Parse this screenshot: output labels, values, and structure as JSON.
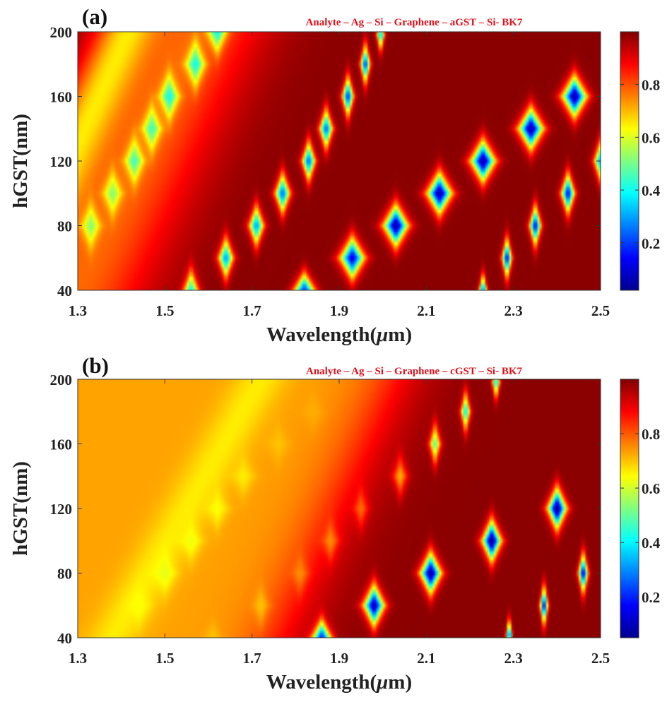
{
  "colormap": [
    "#00008f",
    "#0000ff",
    "#0080ff",
    "#00ffff",
    "#80ff80",
    "#ffff00",
    "#ff8000",
    "#ff0000",
    "#800000"
  ],
  "chart_data": [
    {
      "type": "heatmap",
      "panel_label": "(a)",
      "annotation": "Analyte – Ag – Si – Graphene – aGST – Si- BK7",
      "xlabel": "Wavelength(",
      "xlabel_mu": "μ",
      "xlabel_end": "m)",
      "ylabel": "hGST(nm)",
      "xlim": [
        1.3,
        2.5
      ],
      "ylim": [
        40,
        200
      ],
      "xticks": [
        1.3,
        1.5,
        1.7,
        1.9,
        2.1,
        2.3,
        2.5
      ],
      "yticks": [
        40,
        80,
        120,
        160,
        200
      ],
      "xtick_labels": [
        "1.3",
        "1.5",
        "1.7",
        "1.9",
        "2.1",
        "2.3",
        "2.5"
      ],
      "ytick_labels": [
        "40",
        "80",
        "120",
        "160",
        "200"
      ],
      "colorbar_range": [
        0.02,
        1.0
      ],
      "colorbar_ticks": [
        0.2,
        0.4,
        0.6,
        0.8
      ],
      "colorbar_tick_labels": [
        "0.2",
        "0.4",
        "0.6",
        "0.8"
      ],
      "background_value": 0.99,
      "bands": [
        {
          "type": "linear",
          "x0": 1.3,
          "y0": 40,
          "slope": 600,
          "width": 0.16,
          "floor": 0.78
        },
        {
          "type": "linear",
          "x0": 1.3,
          "y0": 40,
          "slope": 600,
          "width": 0.07,
          "floor": 0.65,
          "offset": -0.15
        }
      ],
      "resonances": [
        {
          "x": 1.33,
          "y": 80,
          "value": 0.52,
          "wx": 0.02,
          "wy": 13
        },
        {
          "x": 1.38,
          "y": 100,
          "value": 0.52,
          "wx": 0.02,
          "wy": 13
        },
        {
          "x": 1.43,
          "y": 120,
          "value": 0.45,
          "wx": 0.02,
          "wy": 13
        },
        {
          "x": 1.47,
          "y": 140,
          "value": 0.45,
          "wx": 0.02,
          "wy": 13
        },
        {
          "x": 1.51,
          "y": 160,
          "value": 0.4,
          "wx": 0.02,
          "wy": 13
        },
        {
          "x": 1.57,
          "y": 180,
          "value": 0.4,
          "wx": 0.02,
          "wy": 13
        },
        {
          "x": 1.62,
          "y": 200,
          "value": 0.4,
          "wx": 0.02,
          "wy": 12
        },
        {
          "x": 1.56,
          "y": 40,
          "value": 0.4,
          "wx": 0.016,
          "wy": 12
        },
        {
          "x": 1.64,
          "y": 60,
          "value": 0.3,
          "wx": 0.016,
          "wy": 12
        },
        {
          "x": 1.71,
          "y": 80,
          "value": 0.3,
          "wx": 0.016,
          "wy": 12
        },
        {
          "x": 1.77,
          "y": 100,
          "value": 0.25,
          "wx": 0.016,
          "wy": 12
        },
        {
          "x": 1.83,
          "y": 120,
          "value": 0.25,
          "wx": 0.014,
          "wy": 12
        },
        {
          "x": 1.87,
          "y": 140,
          "value": 0.25,
          "wx": 0.014,
          "wy": 12
        },
        {
          "x": 1.92,
          "y": 160,
          "value": 0.2,
          "wx": 0.012,
          "wy": 12
        },
        {
          "x": 1.96,
          "y": 180,
          "value": 0.2,
          "wx": 0.01,
          "wy": 12
        },
        {
          "x": 1.995,
          "y": 198,
          "value": 0.35,
          "wx": 0.008,
          "wy": 10
        },
        {
          "x": 1.82,
          "y": 40,
          "value": 0.2,
          "wx": 0.022,
          "wy": 10
        },
        {
          "x": 1.93,
          "y": 60,
          "value": 0.12,
          "wx": 0.026,
          "wy": 12
        },
        {
          "x": 2.03,
          "y": 80,
          "value": 0.05,
          "wx": 0.026,
          "wy": 12
        },
        {
          "x": 2.13,
          "y": 100,
          "value": 0.05,
          "wx": 0.026,
          "wy": 12
        },
        {
          "x": 2.23,
          "y": 120,
          "value": 0.05,
          "wx": 0.026,
          "wy": 12
        },
        {
          "x": 2.34,
          "y": 140,
          "value": 0.05,
          "wx": 0.026,
          "wy": 12
        },
        {
          "x": 2.44,
          "y": 160,
          "value": 0.05,
          "wx": 0.026,
          "wy": 12
        },
        {
          "x": 2.23,
          "y": 40,
          "value": 0.25,
          "wx": 0.008,
          "wy": 10
        },
        {
          "x": 2.285,
          "y": 60,
          "value": 0.15,
          "wx": 0.01,
          "wy": 12
        },
        {
          "x": 2.35,
          "y": 80,
          "value": 0.15,
          "wx": 0.012,
          "wy": 12
        },
        {
          "x": 2.425,
          "y": 100,
          "value": 0.15,
          "wx": 0.014,
          "wy": 12
        },
        {
          "x": 2.5,
          "y": 120,
          "value": 0.3,
          "wx": 0.014,
          "wy": 12
        }
      ]
    },
    {
      "type": "heatmap",
      "panel_label": "(b)",
      "annotation": "Analyte – Ag – Si – Graphene – cGST – Si- BK7",
      "xlabel": "Wavelength(",
      "xlabel_mu": "μ",
      "xlabel_end": "m)",
      "ylabel": "hGST(nm)",
      "xlim": [
        1.3,
        2.5
      ],
      "ylim": [
        40,
        200
      ],
      "xticks": [
        1.3,
        1.5,
        1.7,
        1.9,
        2.1,
        2.3,
        2.5
      ],
      "yticks": [
        40,
        80,
        120,
        160,
        200
      ],
      "xtick_labels": [
        "1.3",
        "1.5",
        "1.7",
        "1.9",
        "2.1",
        "2.3",
        "2.5"
      ],
      "ytick_labels": [
        "40",
        "80",
        "120",
        "160",
        "200"
      ],
      "colorbar_range": [
        0.05,
        1.0
      ],
      "colorbar_ticks": [
        0.2,
        0.4,
        0.6,
        0.8
      ],
      "colorbar_tick_labels": [
        "0.2",
        "0.4",
        "0.6",
        "0.8"
      ],
      "background_value": 0.99,
      "left_region": {
        "value": 0.73,
        "boundary_x0": 1.76,
        "slope": 600,
        "x_at_y40": 1.38,
        "softness": 0.05
      },
      "bands": [
        {
          "type": "linear",
          "x0": 1.38,
          "y0": 40,
          "slope": 470,
          "width": 0.06,
          "floor": 0.66
        }
      ],
      "resonances": [
        {
          "x": 1.44,
          "y": 60,
          "value": 0.64,
          "wx": 0.025,
          "wy": 12
        },
        {
          "x": 1.5,
          "y": 80,
          "value": 0.62,
          "wx": 0.025,
          "wy": 12
        },
        {
          "x": 1.56,
          "y": 100,
          "value": 0.63,
          "wx": 0.025,
          "wy": 12
        },
        {
          "x": 1.62,
          "y": 120,
          "value": 0.64,
          "wx": 0.025,
          "wy": 12
        },
        {
          "x": 1.68,
          "y": 140,
          "value": 0.66,
          "wx": 0.025,
          "wy": 12
        },
        {
          "x": 1.76,
          "y": 160,
          "value": 0.7,
          "wx": 0.025,
          "wy": 12
        },
        {
          "x": 1.84,
          "y": 180,
          "value": 0.72,
          "wx": 0.025,
          "wy": 12
        },
        {
          "x": 1.61,
          "y": 40,
          "value": 0.7,
          "wx": 0.02,
          "wy": 10
        },
        {
          "x": 1.72,
          "y": 60,
          "value": 0.7,
          "wx": 0.018,
          "wy": 12
        },
        {
          "x": 1.81,
          "y": 80,
          "value": 0.75,
          "wx": 0.018,
          "wy": 12
        },
        {
          "x": 1.88,
          "y": 100,
          "value": 0.75,
          "wx": 0.018,
          "wy": 12
        },
        {
          "x": 1.95,
          "y": 120,
          "value": 0.78,
          "wx": 0.016,
          "wy": 12
        },
        {
          "x": 2.04,
          "y": 140,
          "value": 0.72,
          "wx": 0.016,
          "wy": 12
        },
        {
          "x": 2.12,
          "y": 160,
          "value": 0.5,
          "wx": 0.012,
          "wy": 12
        },
        {
          "x": 2.19,
          "y": 180,
          "value": 0.4,
          "wx": 0.01,
          "wy": 12
        },
        {
          "x": 2.26,
          "y": 198,
          "value": 0.4,
          "wx": 0.008,
          "wy": 10
        },
        {
          "x": 1.86,
          "y": 40,
          "value": 0.2,
          "wx": 0.02,
          "wy": 10
        },
        {
          "x": 1.98,
          "y": 60,
          "value": 0.1,
          "wx": 0.022,
          "wy": 12
        },
        {
          "x": 2.11,
          "y": 80,
          "value": 0.06,
          "wx": 0.022,
          "wy": 12
        },
        {
          "x": 2.25,
          "y": 100,
          "value": 0.05,
          "wx": 0.02,
          "wy": 12
        },
        {
          "x": 2.4,
          "y": 120,
          "value": 0.05,
          "wx": 0.02,
          "wy": 12
        },
        {
          "x": 2.29,
          "y": 42,
          "value": 0.25,
          "wx": 0.006,
          "wy": 10
        },
        {
          "x": 2.37,
          "y": 60,
          "value": 0.15,
          "wx": 0.008,
          "wy": 12
        },
        {
          "x": 2.46,
          "y": 80,
          "value": 0.15,
          "wx": 0.01,
          "wy": 12
        }
      ]
    }
  ]
}
